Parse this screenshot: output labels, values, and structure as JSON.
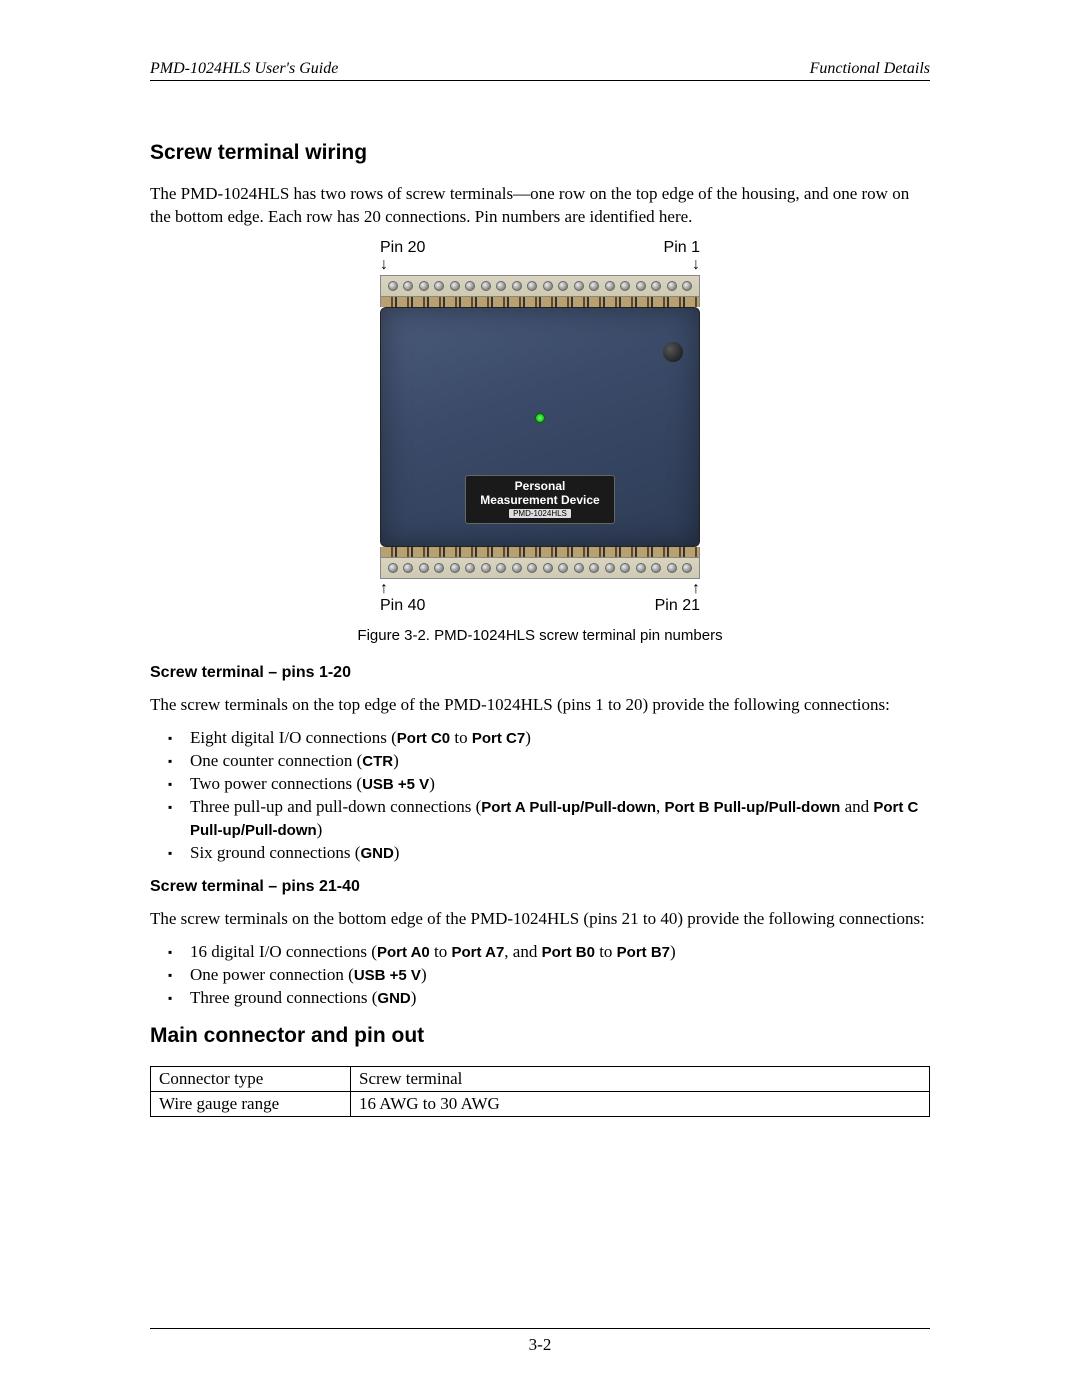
{
  "header": {
    "left": "PMD-1024HLS User's Guide",
    "right": "Functional Details"
  },
  "section_title": "Screw terminal wiring",
  "intro": "The PMD-1024HLS has two rows of screw terminals—one row on the top edge of the housing, and one row on the bottom edge. Each row has 20 connections. Pin numbers are identified here.",
  "figure": {
    "pin_top_left": "Pin 20",
    "pin_top_right": "Pin 1",
    "pin_bot_left": "Pin 40",
    "pin_bot_right": "Pin 21",
    "arrow_down": "↓",
    "arrow_up": "↑",
    "label_line1": "Personal",
    "label_line2": "Measurement Device",
    "label_model": "PMD-1024HLS",
    "caption": "Figure 3-2. PMD-1024HLS screw terminal pin numbers",
    "terminal_count": 20,
    "device_body_color": "#3a4a68",
    "strip_color": "#cfcab2"
  },
  "sub1": {
    "heading": "Screw terminal – pins 1-20",
    "para": "The screw terminals on the top edge of the PMD-1024HLS (pins 1 to 20) provide the following connections:",
    "items": [
      {
        "pre": "Eight digital I/O connections (",
        "bold": "Port C0",
        "mid": " to ",
        "bold2": "Port C7",
        "post": ")"
      },
      {
        "pre": "One counter connection (",
        "bold": "CTR",
        "post": ")"
      },
      {
        "pre": "Two power connections (",
        "bold": "USB +5 V",
        "post": ")"
      },
      {
        "pre": "Three pull-up and pull-down connections (",
        "bold": "Port A Pull-up/Pull-down",
        "mid": ", ",
        "bold2": "Port B Pull-up/Pull-down",
        "mid2": " and ",
        "bold3": "Port C Pull-up/Pull-down",
        "post": ")"
      },
      {
        "pre": "Six ground connections (",
        "bold": "GND",
        "post": ")"
      }
    ]
  },
  "sub2": {
    "heading": "Screw terminal – pins 21-40",
    "para": "The screw terminals on the bottom edge of the PMD-1024HLS (pins 21 to 40) provide the following connections:",
    "items": [
      {
        "pre": "16 digital I/O connections (",
        "bold": "Port A0",
        "mid": " to ",
        "bold2": "Port A7",
        "mid2": ", and ",
        "bold3": "Port B0",
        "mid3": " to ",
        "bold4": "Port B7",
        "post": ")"
      },
      {
        "pre": "One power connection (",
        "bold": "USB +5 V",
        "post": ")"
      },
      {
        "pre": "Three ground connections (",
        "bold": "GND",
        "post": ")"
      }
    ]
  },
  "section2_title": "Main connector and pin out",
  "spec_table": {
    "rows": [
      {
        "k": "Connector type",
        "v": "Screw terminal"
      },
      {
        "k": "Wire gauge range",
        "v": "16 AWG to 30 AWG"
      }
    ]
  },
  "page_number": "3-2"
}
